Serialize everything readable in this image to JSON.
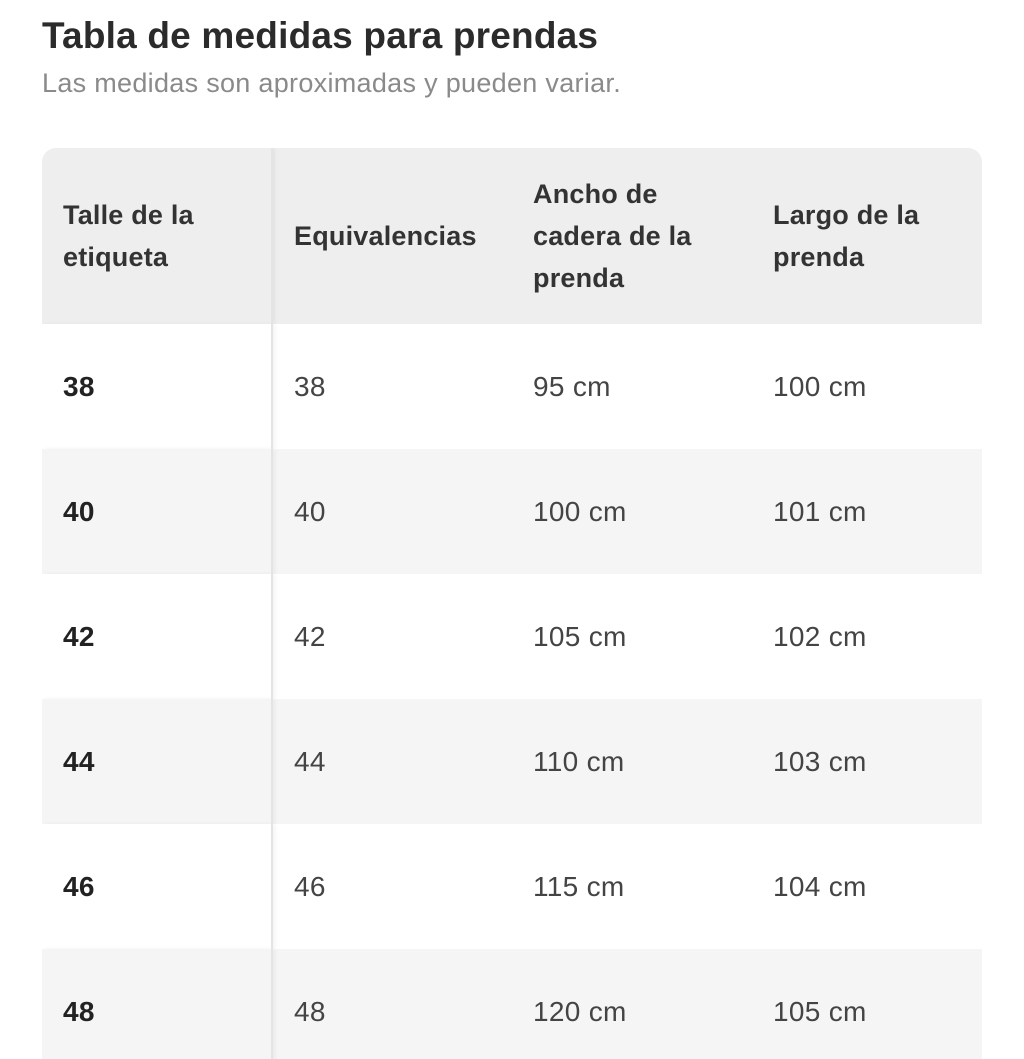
{
  "title": "Tabla de medidas para prendas",
  "subtitle": "Las medidas son aproximadas y pueden variar.",
  "table": {
    "headers": [
      "Talle de la etiqueta",
      "Equivalencias",
      "Ancho de cadera de la prenda",
      "Largo de la prenda"
    ],
    "rows": [
      [
        "38",
        "38",
        "95 cm",
        "100 cm"
      ],
      [
        "40",
        "40",
        "100 cm",
        "101 cm"
      ],
      [
        "42",
        "42",
        "105 cm",
        "102 cm"
      ],
      [
        "44",
        "44",
        "110 cm",
        "103 cm"
      ],
      [
        "46",
        "46",
        "115 cm",
        "104 cm"
      ],
      [
        "48",
        "48",
        "120 cm",
        "105 cm"
      ]
    ]
  },
  "colors": {
    "header_bg": "#eeeeee",
    "stripe_bg": "#f5f5f5",
    "text": "#333333",
    "subtitle": "#8a8a8a"
  }
}
